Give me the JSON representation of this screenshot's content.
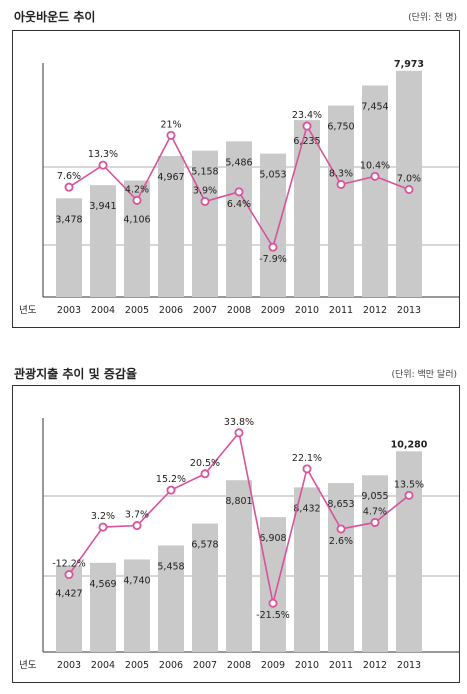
{
  "chart_data": [
    {
      "type": "bar",
      "title": "아웃바운드 추이",
      "unit": "(단위: 천 명)",
      "x_axis_label": "년도",
      "categories": [
        "2003",
        "2004",
        "2005",
        "2006",
        "2007",
        "2008",
        "2009",
        "2010",
        "2011",
        "2012",
        "2013"
      ],
      "series": [
        {
          "values": [
            3478,
            3941,
            4106,
            4967,
            5158,
            5486,
            5053,
            6235,
            6750,
            7454,
            7973
          ],
          "labels": [
            "3,478",
            "3,941",
            "4,106",
            "4,967",
            "5,158",
            "5,486",
            "5,053",
            "6,235",
            "6,750",
            "7,454",
            "7,973"
          ]
        },
        {
          "type": "line",
          "values": [
            7.6,
            13.3,
            4.2,
            21,
            3.9,
            6.4,
            -7.9,
            23.4,
            8.3,
            10.4,
            7.0
          ],
          "labels": [
            "7.6%",
            "13.3%",
            "4.2%",
            "21%",
            "3.9%",
            "6.4%",
            "-7.9%",
            "23.4%",
            "8.3%",
            "10.4%",
            "7.0%"
          ]
        }
      ],
      "grid": true
    },
    {
      "type": "bar",
      "title": "관광지출 추이 및 증감율",
      "unit": "(단위: 백만 달러)",
      "x_axis_label": "년도",
      "categories": [
        "2003",
        "2004",
        "2005",
        "2006",
        "2007",
        "2008",
        "2009",
        "2010",
        "2011",
        "2012",
        "2013"
      ],
      "series": [
        {
          "values": [
            4427,
            4569,
            4740,
            5458,
            6578,
            8801,
            6908,
            8432,
            8653,
            9055,
            10280
          ],
          "labels": [
            "4,427",
            "4,569",
            "4,740",
            "5,458",
            "6,578",
            "8,801",
            "6,908",
            "8,432",
            "8,653",
            "9,055",
            "10,280"
          ]
        },
        {
          "type": "line",
          "values": [
            -12.2,
            3.2,
            3.7,
            15.2,
            20.5,
            33.8,
            -21.5,
            22.1,
            2.6,
            4.7,
            13.5
          ],
          "labels": [
            "-12.2%",
            "3.2%",
            "3.7%",
            "15.2%",
            "20.5%",
            "33.8%",
            "-21.5%",
            "22.1%",
            "2.6%",
            "4.7%",
            "13.5%"
          ]
        }
      ],
      "grid": true
    }
  ]
}
